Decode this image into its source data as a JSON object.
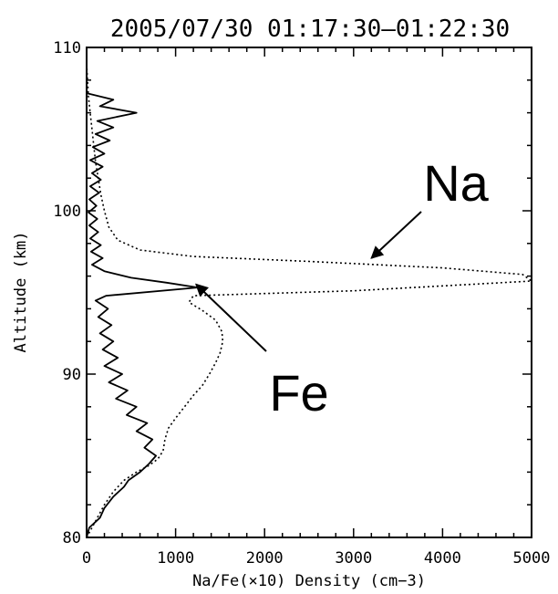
{
  "chart_data": {
    "type": "line",
    "title": "2005/07/30 01:17:30—01:22:30",
    "xlabel": "Na/Fe(×10) Density (cm−3)",
    "ylabel": "Altitude (km)",
    "xlim": [
      0,
      5000
    ],
    "ylim": [
      80,
      110
    ],
    "x_ticks": [
      0,
      1000,
      2000,
      3000,
      4000,
      5000
    ],
    "x_tick_labels": [
      "0",
      "1000",
      "2000",
      "3000",
      "4000",
      "5000"
    ],
    "y_ticks": [
      80,
      90,
      100,
      110
    ],
    "y_tick_labels": [
      "80",
      "90",
      "100",
      "110"
    ],
    "grid": false,
    "legend": "none",
    "annotations": [
      {
        "text": "Na",
        "points_to": {
          "x": 3200,
          "y": 97.1
        }
      },
      {
        "text": "Fe",
        "points_to": {
          "x": 1230,
          "y": 95.5
        }
      }
    ],
    "series": [
      {
        "name": "Fe",
        "line_style": "solid",
        "color": "#000000",
        "points": [
          [
            0,
            80.0
          ],
          [
            30,
            80.6
          ],
          [
            150,
            81.2
          ],
          [
            200,
            81.8
          ],
          [
            300,
            82.5
          ],
          [
            420,
            83.1
          ],
          [
            470,
            83.5
          ],
          [
            600,
            84.0
          ],
          [
            700,
            84.5
          ],
          [
            780,
            85.0
          ],
          [
            650,
            85.5
          ],
          [
            740,
            86.0
          ],
          [
            560,
            86.5
          ],
          [
            680,
            87.0
          ],
          [
            450,
            87.5
          ],
          [
            560,
            88.0
          ],
          [
            330,
            88.5
          ],
          [
            460,
            89.0
          ],
          [
            250,
            89.5
          ],
          [
            400,
            90.0
          ],
          [
            200,
            90.5
          ],
          [
            350,
            91.0
          ],
          [
            180,
            91.5
          ],
          [
            300,
            92.0
          ],
          [
            150,
            92.5
          ],
          [
            280,
            93.0
          ],
          [
            130,
            93.5
          ],
          [
            240,
            94.0
          ],
          [
            100,
            94.5
          ],
          [
            220,
            94.8
          ],
          [
            1250,
            95.3
          ],
          [
            900,
            95.6
          ],
          [
            500,
            95.9
          ],
          [
            200,
            96.3
          ],
          [
            60,
            96.7
          ],
          [
            180,
            97.1
          ],
          [
            50,
            97.5
          ],
          [
            160,
            97.9
          ],
          [
            40,
            98.3
          ],
          [
            130,
            98.7
          ],
          [
            30,
            99.1
          ],
          [
            120,
            99.5
          ],
          [
            20,
            99.9
          ],
          [
            110,
            100.3
          ],
          [
            30,
            100.7
          ],
          [
            140,
            101.1
          ],
          [
            40,
            101.5
          ],
          [
            160,
            101.9
          ],
          [
            60,
            102.3
          ],
          [
            180,
            102.7
          ],
          [
            40,
            103.1
          ],
          [
            200,
            103.5
          ],
          [
            70,
            103.9
          ],
          [
            260,
            104.3
          ],
          [
            100,
            104.7
          ],
          [
            300,
            105.1
          ],
          [
            120,
            105.5
          ],
          [
            560,
            106.0
          ],
          [
            150,
            106.4
          ],
          [
            300,
            106.8
          ],
          [
            0,
            107.2
          ]
        ]
      },
      {
        "name": "Na",
        "line_style": "dotted",
        "color": "#000000",
        "points": [
          [
            0,
            80.0
          ],
          [
            100,
            81.0
          ],
          [
            200,
            82.0
          ],
          [
            300,
            82.8
          ],
          [
            420,
            83.5
          ],
          [
            560,
            84.0
          ],
          [
            700,
            84.4
          ],
          [
            800,
            84.8
          ],
          [
            860,
            85.3
          ],
          [
            880,
            86.0
          ],
          [
            920,
            86.7
          ],
          [
            1000,
            87.3
          ],
          [
            1100,
            88.0
          ],
          [
            1200,
            88.7
          ],
          [
            1300,
            89.3
          ],
          [
            1380,
            90.0
          ],
          [
            1450,
            90.7
          ],
          [
            1500,
            91.3
          ],
          [
            1530,
            92.0
          ],
          [
            1520,
            92.6
          ],
          [
            1450,
            93.3
          ],
          [
            1300,
            93.9
          ],
          [
            1150,
            94.4
          ],
          [
            1200,
            94.8
          ],
          [
            3000,
            95.1
          ],
          [
            5000,
            95.7
          ],
          [
            4900,
            96.1
          ],
          [
            4000,
            96.5
          ],
          [
            2500,
            96.9
          ],
          [
            1200,
            97.2
          ],
          [
            600,
            97.6
          ],
          [
            350,
            98.2
          ],
          [
            250,
            99.0
          ],
          [
            200,
            100.0
          ],
          [
            160,
            101.0
          ],
          [
            130,
            102.0
          ],
          [
            100,
            103.0
          ],
          [
            80,
            104.0
          ],
          [
            60,
            105.0
          ],
          [
            40,
            106.0
          ],
          [
            20,
            107.0
          ],
          [
            10,
            108.0
          ],
          [
            0,
            109.0
          ]
        ]
      }
    ]
  }
}
